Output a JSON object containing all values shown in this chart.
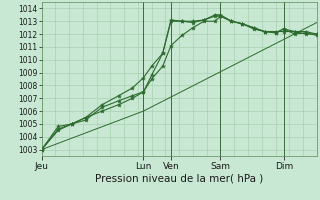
{
  "background_color": "#c8e8d4",
  "grid_color": "#b0d8bc",
  "line_color": "#2d6a2d",
  "marker_color": "#2d6a2d",
  "xlabel": "Pression niveau de la mer( hPa )",
  "ylim": [
    1002.5,
    1014.5
  ],
  "yticks": [
    1003,
    1004,
    1005,
    1006,
    1007,
    1008,
    1009,
    1010,
    1011,
    1012,
    1013,
    1014
  ],
  "xtick_labels": [
    "Jeu",
    "Lun",
    "Ven",
    "Sam",
    "Dim"
  ],
  "xtick_positions": [
    0.0,
    0.37,
    0.47,
    0.65,
    0.88
  ],
  "vline_positions": [
    0.37,
    0.47,
    0.65,
    0.88
  ],
  "series": [
    {
      "x": [
        0.0,
        0.06,
        0.11,
        0.16,
        0.22,
        0.28,
        0.33,
        0.37,
        0.4,
        0.44,
        0.47,
        0.51,
        0.55,
        0.59,
        0.63,
        0.65,
        0.69,
        0.73,
        0.77,
        0.81,
        0.85,
        0.88,
        0.92,
        0.96,
        1.0
      ],
      "y": [
        1003.0,
        1004.5,
        1005.0,
        1005.3,
        1006.3,
        1006.8,
        1007.2,
        1007.5,
        1008.5,
        1009.5,
        1011.1,
        1011.9,
        1012.5,
        1013.0,
        1013.0,
        1013.4,
        1013.0,
        1012.8,
        1012.4,
        1012.2,
        1012.1,
        1012.4,
        1012.0,
        1012.1,
        1011.9
      ]
    },
    {
      "x": [
        0.0,
        0.06,
        0.11,
        0.16,
        0.22,
        0.28,
        0.33,
        0.37,
        0.4,
        0.44,
        0.47,
        0.51,
        0.55,
        0.59,
        0.63,
        0.65,
        0.69,
        0.73,
        0.77,
        0.81,
        0.85,
        0.88,
        0.92,
        0.96,
        1.0
      ],
      "y": [
        1003.0,
        1004.6,
        1005.0,
        1005.5,
        1006.5,
        1007.2,
        1007.8,
        1008.6,
        1009.5,
        1010.5,
        1013.0,
        1013.0,
        1012.9,
        1013.1,
        1013.5,
        1013.5,
        1013.0,
        1012.8,
        1012.5,
        1012.2,
        1012.1,
        1012.4,
        1012.2,
        1012.2,
        1012.0
      ]
    },
    {
      "x": [
        0.0,
        0.37,
        1.0
      ],
      "y": [
        1003.0,
        1006.0,
        1012.9
      ]
    },
    {
      "x": [
        0.0,
        0.06,
        0.11,
        0.16,
        0.22,
        0.28,
        0.33,
        0.37,
        0.4,
        0.44,
        0.47,
        0.51,
        0.55,
        0.59,
        0.63,
        0.65,
        0.69,
        0.73,
        0.77,
        0.81,
        0.85,
        0.88,
        0.92,
        0.96,
        1.0
      ],
      "y": [
        1003.0,
        1004.8,
        1005.0,
        1005.5,
        1006.0,
        1006.5,
        1007.0,
        1007.5,
        1008.8,
        1010.5,
        1013.1,
        1013.0,
        1013.0,
        1013.1,
        1013.4,
        1013.4,
        1013.0,
        1012.8,
        1012.5,
        1012.2,
        1012.2,
        1012.2,
        1012.2,
        1012.0,
        1012.0
      ]
    }
  ]
}
